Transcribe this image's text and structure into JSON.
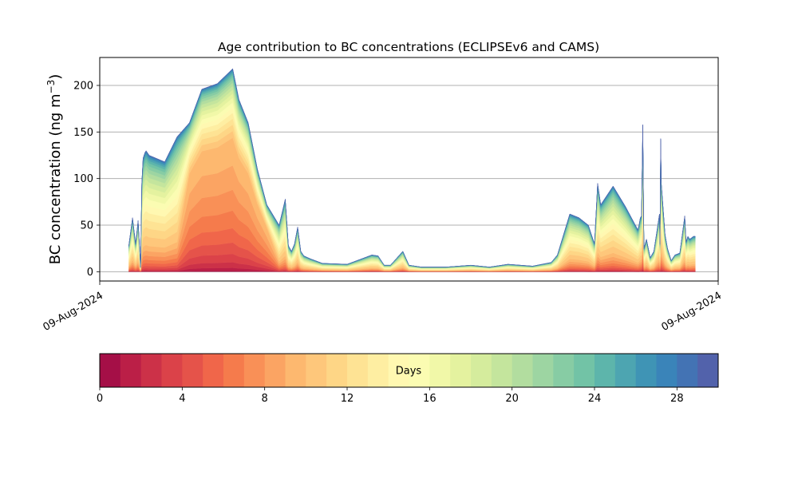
{
  "chart_data": {
    "type": "area",
    "title": "Age contribution to BC concentrations (ECLIPSEv6 and CAMS)",
    "ylabel_main": "BC concentration (ng m",
    "ylabel_sup": "−3",
    "ylabel_close": ")",
    "ylim": [
      -10,
      230
    ],
    "yticks": [
      0,
      50,
      100,
      150,
      200
    ],
    "grid": "horizontal",
    "x_tick_labels": [
      "09-Aug-2024",
      "09-Aug-2024"
    ],
    "total": {
      "x": [
        0.047,
        0.053,
        0.058,
        0.062,
        0.066,
        0.068,
        0.07,
        0.073,
        0.075,
        0.08,
        0.105,
        0.125,
        0.145,
        0.165,
        0.19,
        0.215,
        0.225,
        0.24,
        0.255,
        0.27,
        0.29,
        0.3,
        0.305,
        0.31,
        0.315,
        0.32,
        0.325,
        0.33,
        0.34,
        0.36,
        0.4,
        0.42,
        0.44,
        0.45,
        0.46,
        0.47,
        0.49,
        0.5,
        0.52,
        0.56,
        0.6,
        0.63,
        0.66,
        0.7,
        0.73,
        0.74,
        0.76,
        0.775,
        0.79,
        0.795,
        0.8,
        0.805,
        0.81,
        0.83,
        0.85,
        0.87,
        0.872,
        0.874,
        0.876,
        0.878,
        0.88,
        0.884,
        0.89,
        0.896,
        0.905,
        0.906,
        0.907,
        0.908,
        0.914,
        0.918,
        0.924,
        0.93,
        0.938,
        0.946,
        0.948,
        0.951,
        0.954,
        0.96,
        0.963
      ],
      "y": [
        28,
        58,
        30,
        55,
        5,
        95,
        122,
        128,
        130,
        125,
        118,
        145,
        160,
        196,
        202,
        218,
        185,
        160,
        110,
        72,
        50,
        78,
        28,
        22,
        30,
        48,
        22,
        17,
        14,
        9,
        8,
        13,
        18,
        17,
        7,
        7,
        22,
        7,
        5,
        5,
        7,
        5,
        8,
        6,
        10,
        18,
        62,
        58,
        50,
        40,
        30,
        95,
        72,
        92,
        70,
        45,
        50,
        58,
        60,
        158,
        25,
        35,
        15,
        22,
        62,
        30,
        143,
        95,
        40,
        25,
        12,
        18,
        20,
        60,
        32,
        38,
        35,
        38,
        38
      ]
    },
    "colorbar": {
      "label": "Days",
      "ticks": [
        0,
        4,
        8,
        12,
        16,
        20,
        24,
        28
      ],
      "min": 0,
      "max": 30,
      "colors": [
        "#a50f47",
        "#bb1f47",
        "#cc3148",
        "#db4249",
        "#e5534a",
        "#f0664a",
        "#f57b4c",
        "#f99057",
        "#fba463",
        "#fdb86f",
        "#fec77b",
        "#fed686",
        "#fee394",
        "#feeea2",
        "#fff8b1",
        "#fbfcb2",
        "#f1f8a8",
        "#e4f29f",
        "#d5ec9d",
        "#c4e59d",
        "#b2dd9f",
        "#9dd5a2",
        "#87cca4",
        "#72c3a6",
        "#5db5ab",
        "#4da5b1",
        "#3f94b5",
        "#3a84b9",
        "#4373b4",
        "#5262ab"
      ]
    }
  }
}
